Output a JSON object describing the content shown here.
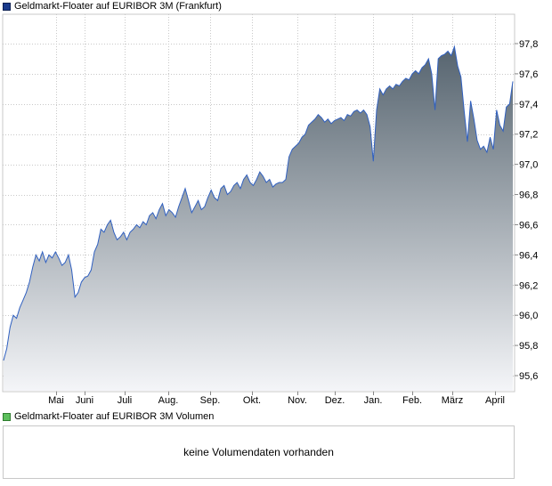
{
  "legend": {
    "price_label": "Geldmarkt-Floater auf EURIBOR 3M (Frankfurt)",
    "price_color": "#1a3a8c",
    "volume_label": "Geldmarkt-Floater auf EURIBOR 3M Volumen",
    "volume_color": "#5cbf5c"
  },
  "volume": {
    "message": "keine Volumendaten vorhanden"
  },
  "chart_data": {
    "type": "area",
    "title": "",
    "xlabel": "",
    "ylabel": "",
    "ylim": [
      95.5,
      97.95
    ],
    "grid": true,
    "y_axis_position": "right",
    "fill_gradient": [
      "#56646f",
      "#f4f5f8"
    ],
    "line_color": "#3060c0",
    "yticks": [
      "95,6",
      "95,8",
      "96,0",
      "96,2",
      "96,4",
      "96,6",
      "96,8",
      "97,0",
      "97,2",
      "97,4",
      "97,6",
      "97,8"
    ],
    "ytick_values": [
      95.6,
      95.8,
      96.0,
      96.2,
      96.4,
      96.6,
      96.8,
      97.0,
      97.2,
      97.4,
      97.6,
      97.8
    ],
    "xticks": [
      "Mai",
      "Juni",
      "Juli",
      "Aug.",
      "Sep.",
      "Okt.",
      "Nov.",
      "Dez.",
      "Jan.",
      "Feb.",
      "März",
      "April"
    ],
    "series": [
      {
        "values": [
          95.7,
          95.78,
          95.92,
          96.0,
          95.98,
          96.05,
          96.1,
          96.15,
          96.22,
          96.32,
          96.4,
          96.36,
          96.42,
          96.35,
          96.4,
          96.38,
          96.42,
          96.38,
          96.33,
          96.35,
          96.4,
          96.3,
          96.12,
          96.15,
          96.22,
          96.25,
          96.26,
          96.3,
          96.42,
          96.47,
          96.57,
          96.55,
          96.6,
          96.63,
          96.55,
          96.5,
          96.52,
          96.55,
          96.5,
          96.55,
          96.57,
          96.6,
          96.58,
          96.62,
          96.6,
          96.66,
          96.68,
          96.64,
          96.7,
          96.74,
          96.66,
          96.7,
          96.68,
          96.65,
          96.72,
          96.78,
          96.84,
          96.76,
          96.68,
          96.72,
          96.76,
          96.7,
          96.72,
          96.78,
          96.83,
          96.78,
          96.76,
          96.84,
          96.86,
          96.8,
          96.82,
          96.86,
          96.88,
          96.84,
          96.9,
          96.93,
          96.88,
          96.86,
          96.9,
          96.95,
          96.92,
          96.88,
          96.9,
          96.85,
          96.87,
          96.88,
          96.88,
          96.9,
          97.05,
          97.1,
          97.12,
          97.14,
          97.18,
          97.2,
          97.26,
          97.28,
          97.3,
          97.33,
          97.31,
          97.28,
          97.3,
          97.27,
          97.29,
          97.3,
          97.31,
          97.29,
          97.33,
          97.32,
          97.35,
          97.36,
          97.34,
          97.36,
          97.33,
          97.25,
          97.02,
          97.36,
          97.5,
          97.46,
          97.5,
          97.52,
          97.5,
          97.53,
          97.52,
          97.55,
          97.57,
          97.56,
          97.6,
          97.62,
          97.6,
          97.64,
          97.66,
          97.7,
          97.6,
          97.36,
          97.7,
          97.72,
          97.73,
          97.75,
          97.72,
          97.78,
          97.65,
          97.58,
          97.35,
          97.15,
          97.42,
          97.3,
          97.16,
          97.1,
          97.12,
          97.08,
          97.18,
          97.1,
          97.36,
          97.26,
          97.22,
          97.38,
          97.4,
          97.55
        ]
      }
    ]
  }
}
